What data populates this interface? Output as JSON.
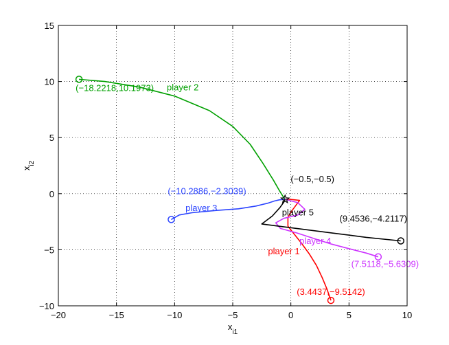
{
  "chart_data": {
    "type": "line",
    "title": "",
    "xlabel": "x",
    "xlabel_sub": "i1",
    "ylabel": "x",
    "ylabel_sub": "i2",
    "xlim": [
      -20,
      10
    ],
    "ylim": [
      -10,
      15
    ],
    "xticks": [
      -20,
      -15,
      -10,
      -5,
      0,
      5,
      10
    ],
    "yticks": [
      -10,
      -5,
      0,
      5,
      10,
      15
    ],
    "xtick_labels": [
      "−20",
      "−15",
      "−10",
      "−5",
      "0",
      "5",
      "10"
    ],
    "ytick_labels": [
      "−10",
      "−5",
      "0",
      "5",
      "10",
      "15"
    ],
    "grid": "dotted",
    "equilibrium": {
      "x": -0.5,
      "y": -0.5,
      "label": "(−0.5,−0.5)",
      "marker": "star",
      "color": "#000000"
    },
    "series": [
      {
        "name": "player 1",
        "color": "#ff0000",
        "start": {
          "x": 3.4437,
          "y": -9.5142,
          "label": "(3.4437,−9.5142)"
        },
        "points": [
          [
            3.4437,
            -9.5142
          ],
          [
            3.1,
            -8.5
          ],
          [
            2.7,
            -7.5
          ],
          [
            2.2,
            -6.4
          ],
          [
            1.6,
            -5.4
          ],
          [
            0.9,
            -4.4
          ],
          [
            0.2,
            -3.5
          ],
          [
            -0.25,
            -2.9
          ],
          [
            -0.25,
            -2.1
          ],
          [
            0.1,
            -1.5
          ],
          [
            0.5,
            -0.95
          ],
          [
            0.75,
            -0.6
          ],
          [
            0.35,
            -0.55
          ],
          [
            -0.1,
            -0.5
          ],
          [
            -0.5,
            -0.5
          ]
        ]
      },
      {
        "name": "player 2",
        "color": "#00a000",
        "start": {
          "x": -18.2218,
          "y": 10.1973,
          "label": "(−18.2218,10.1973)"
        },
        "points": [
          [
            -18.2218,
            10.1973
          ],
          [
            -16,
            10.0
          ],
          [
            -13,
            9.5
          ],
          [
            -10,
            8.7
          ],
          [
            -7,
            7.4
          ],
          [
            -5,
            6.0
          ],
          [
            -3.5,
            4.4
          ],
          [
            -2.4,
            2.7
          ],
          [
            -1.5,
            1.2
          ],
          [
            -1.0,
            0.3
          ],
          [
            -0.7,
            -0.2
          ],
          [
            -0.5,
            -0.5
          ]
        ]
      },
      {
        "name": "player 3",
        "color": "#2b44ff",
        "start": {
          "x": -10.2886,
          "y": -2.3039,
          "label": "(−10.2886,−2.3039)"
        },
        "points": [
          [
            -10.2886,
            -2.3039
          ],
          [
            -9.6,
            -1.9
          ],
          [
            -8.5,
            -1.7
          ],
          [
            -6.5,
            -1.5
          ],
          [
            -4.5,
            -1.35
          ],
          [
            -3.0,
            -1.1
          ],
          [
            -2.0,
            -0.85
          ],
          [
            -1.4,
            -0.65
          ],
          [
            -1.0,
            -0.55
          ],
          [
            -0.5,
            -0.5
          ]
        ]
      },
      {
        "name": "player 4",
        "color": "#cc33ff",
        "start": {
          "x": 7.5118,
          "y": -5.6309,
          "label": "(7.5118,−5.6309)"
        },
        "points": [
          [
            7.5118,
            -5.6309
          ],
          [
            6.5,
            -5.3
          ],
          [
            5.0,
            -4.9
          ],
          [
            3.5,
            -4.5
          ],
          [
            2.0,
            -4.0
          ],
          [
            0.5,
            -3.5
          ],
          [
            -0.9,
            -3.1
          ],
          [
            -1.3,
            -2.6
          ],
          [
            -0.6,
            -2.2
          ],
          [
            0.6,
            -1.9
          ],
          [
            1.2,
            -1.4
          ],
          [
            0.6,
            -0.8
          ],
          [
            -0.5,
            -0.5
          ]
        ]
      },
      {
        "name": "player 5",
        "color": "#000000",
        "start": {
          "x": 9.4536,
          "y": -4.2117,
          "label": "(9.4536,−4.2117)"
        },
        "points": [
          [
            9.4536,
            -4.2117
          ],
          [
            6.5,
            -3.9
          ],
          [
            3.5,
            -3.5
          ],
          [
            0.5,
            -3.1
          ],
          [
            -2.5,
            -2.7
          ],
          [
            -1.6,
            -2.0
          ],
          [
            -0.95,
            -1.25
          ],
          [
            -0.6,
            -0.75
          ],
          [
            -0.5,
            -0.5
          ]
        ]
      }
    ],
    "annotations": [
      {
        "text": "player 2",
        "x": -9.3,
        "y": 9.2,
        "color": "#00a000"
      },
      {
        "text": "player 3",
        "x": -7.7,
        "y": -1.55,
        "color": "#2b44ff"
      },
      {
        "text": "player 5",
        "x": 0.6,
        "y": -1.95,
        "color": "#000000"
      },
      {
        "text": "player 4",
        "x": 2.1,
        "y": -4.5,
        "color": "#cc33ff"
      },
      {
        "text": "player 1",
        "x": -0.6,
        "y": -5.4,
        "color": "#ff0000"
      }
    ]
  }
}
